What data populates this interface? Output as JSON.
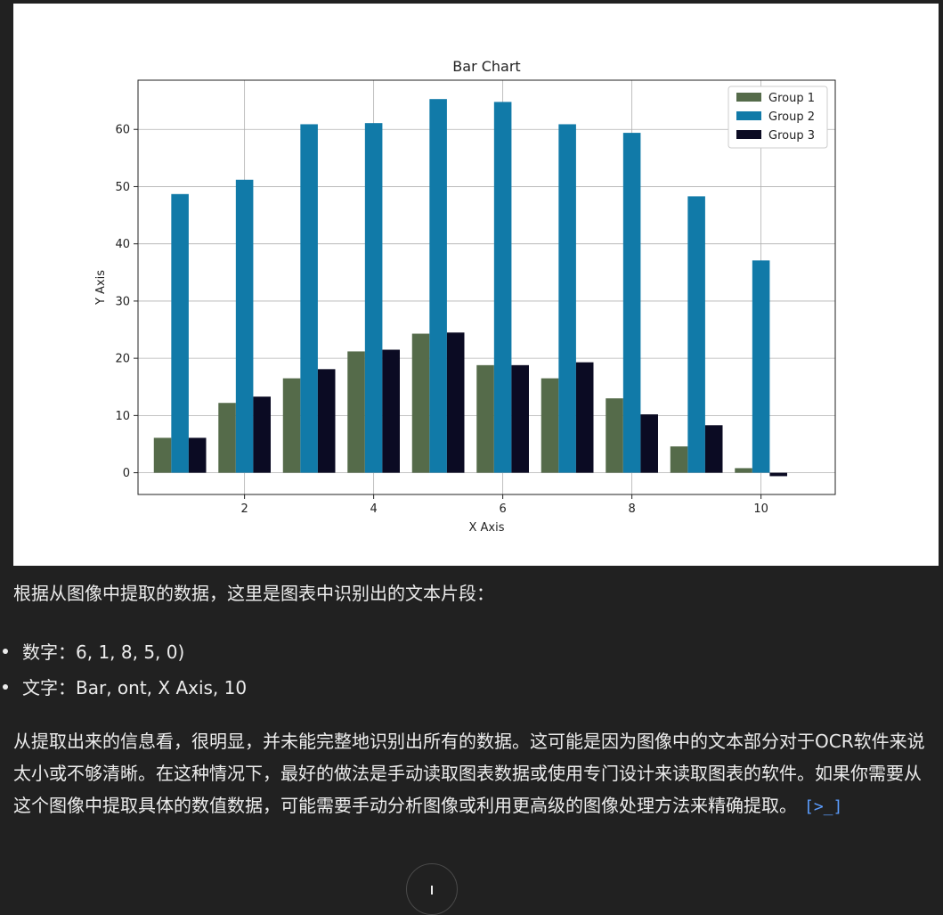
{
  "chart_data": {
    "type": "bar",
    "title": "Bar Chart",
    "xlabel": "X Axis",
    "ylabel": "Y Axis",
    "x": [
      1,
      2,
      3,
      4,
      5,
      6,
      7,
      8,
      9,
      10
    ],
    "series": [
      {
        "name": "Group 1",
        "color": "#556b4a",
        "values": [
          6.1,
          12.2,
          16.5,
          21.2,
          24.3,
          18.8,
          16.5,
          13.0,
          4.6,
          0.8
        ]
      },
      {
        "name": "Group 2",
        "color": "#117aa8",
        "values": [
          48.7,
          51.2,
          60.9,
          61.1,
          65.3,
          64.8,
          60.9,
          59.4,
          48.3,
          37.1
        ]
      },
      {
        "name": "Group 3",
        "color": "#0b0b23",
        "values": [
          6.1,
          13.3,
          18.1,
          21.5,
          24.5,
          18.8,
          19.3,
          10.2,
          8.3,
          -0.6
        ]
      }
    ],
    "xticks": [
      2,
      4,
      6,
      8,
      10
    ],
    "yticks": [
      0,
      10,
      20,
      30,
      40,
      50,
      60
    ],
    "xlim": [
      0.35,
      11.15
    ],
    "ylim": [
      -3.8,
      68.6
    ],
    "grid": true,
    "legend_position": "upper-right"
  },
  "message": {
    "intro": "根据从图像中提取的数据，这里是图表中识别出的文本片段：",
    "bullets": [
      "数字：6, 1, 8, 5, 0)",
      "文字：Bar, ont, X Axis, 10"
    ],
    "paragraph": "从提取出来的信息看，很明显，并未能完整地识别出所有的数据。这可能是因为图像中的文本部分对于OCR软件来说太小或不够清晰。在这种情况下，最好的做法是手动读取图表数据或使用专门设计来读取图表的软件。如果你需要从这个图像中提取具体的数值数据，可能需要手动分析图像或利用更高级的图像处理方法来精确提取。",
    "code_icon": "[>_]"
  },
  "icons": {
    "code": "code-icon",
    "scroll": "arrow-down-icon"
  }
}
